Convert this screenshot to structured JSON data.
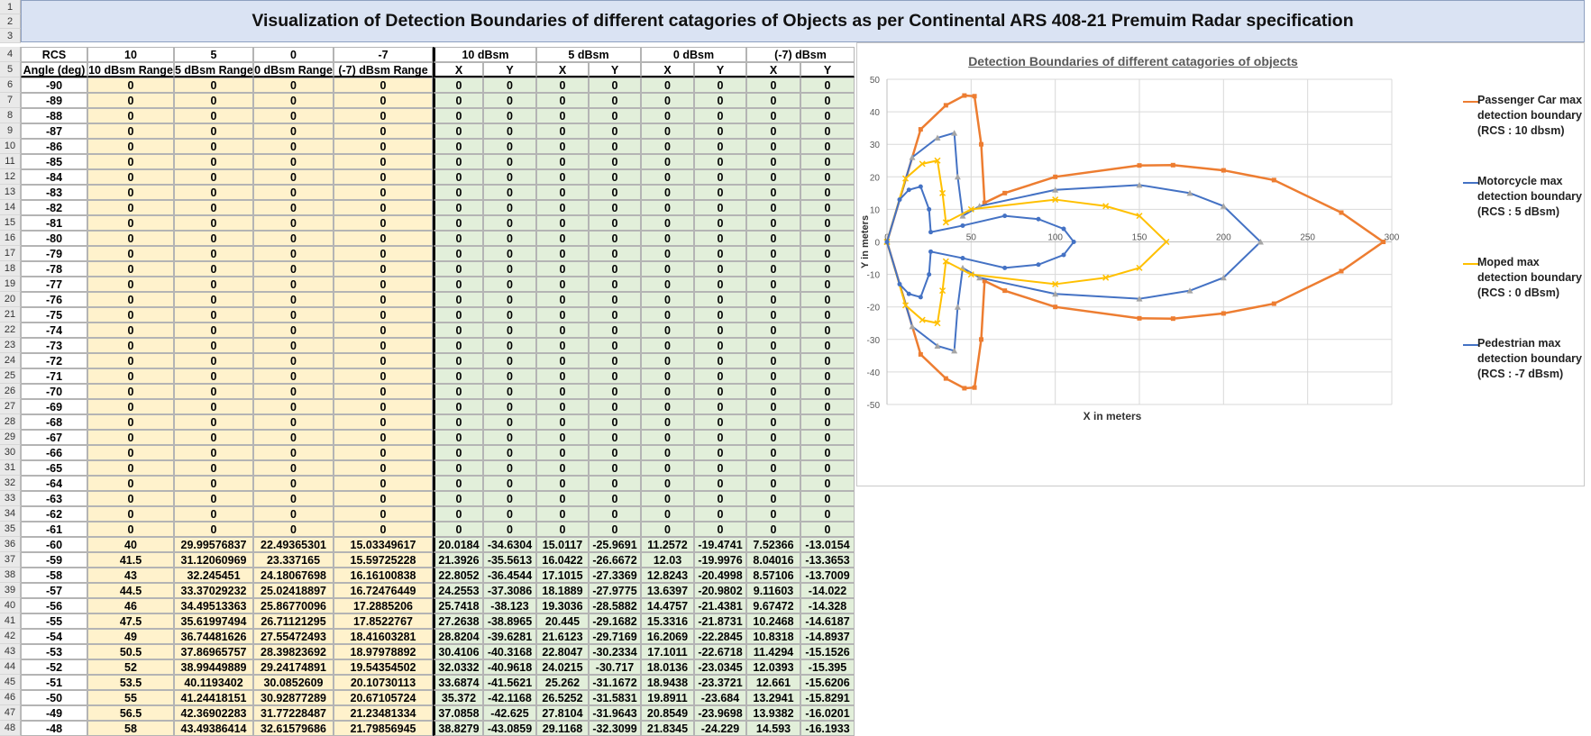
{
  "sheet": {
    "title": "Visualization of Detection Boundaries of different catagories of Objects as per Continental ARS 408-21 Premuim Radar specification",
    "row_numbers": [
      "1",
      "2",
      "3",
      "4",
      "5",
      "6",
      "7",
      "8",
      "9",
      "10",
      "11",
      "12",
      "13",
      "14",
      "15",
      "16",
      "17",
      "18",
      "19",
      "20",
      "21",
      "22",
      "23",
      "24",
      "25",
      "26",
      "27",
      "28",
      "29",
      "30",
      "31",
      "32",
      "33",
      "34",
      "35",
      "36",
      "37",
      "38",
      "39",
      "40",
      "41",
      "42",
      "43",
      "44",
      "45",
      "46",
      "47",
      "48"
    ],
    "header_row4": [
      "RCS",
      "10",
      "5",
      "0",
      "-7",
      "10 dBsm",
      "5 dBsm",
      "0 dBsm",
      "(-7) dBsm"
    ],
    "header_row5": [
      "Angle (deg)",
      "10 dBsm Range",
      "5 dBsm Range",
      "0 dBsm Range",
      "(-7) dBsm Range",
      "X",
      "Y",
      "X",
      "Y",
      "X",
      "Y",
      "X",
      "Y"
    ],
    "zero_rows": {
      "angles": [
        "-90",
        "-89",
        "-88",
        "-87",
        "-86",
        "-85",
        "-84",
        "-83",
        "-82",
        "-81",
        "-80",
        "-79",
        "-78",
        "-77",
        "-76",
        "-75",
        "-74",
        "-73",
        "-72",
        "-71",
        "-70",
        "-69",
        "-68",
        "-67",
        "-66",
        "-65",
        "-64",
        "-63",
        "-62",
        "-61"
      ],
      "value": "0"
    },
    "data_rows": [
      [
        "-60",
        "40",
        "29.99576837",
        "22.49365301",
        "15.03349617",
        "20.0184",
        "-34.6304",
        "15.0117",
        "-25.9691",
        "11.2572",
        "-19.4741",
        "7.52366",
        "-13.0154"
      ],
      [
        "-59",
        "41.5",
        "31.12060969",
        "23.337165",
        "15.59725228",
        "21.3926",
        "-35.5613",
        "16.0422",
        "-26.6672",
        "12.03",
        "-19.9976",
        "8.04016",
        "-13.3653"
      ],
      [
        "-58",
        "43",
        "32.245451",
        "24.18067698",
        "16.16100838",
        "22.8052",
        "-36.4544",
        "17.1015",
        "-27.3369",
        "12.8243",
        "-20.4998",
        "8.57106",
        "-13.7009"
      ],
      [
        "-57",
        "44.5",
        "33.37029232",
        "25.02418897",
        "16.72476449",
        "24.2553",
        "-37.3086",
        "18.1889",
        "-27.9775",
        "13.6397",
        "-20.9802",
        "9.11603",
        "-14.022"
      ],
      [
        "-56",
        "46",
        "34.49513363",
        "25.86770096",
        "17.2885206",
        "25.7418",
        "-38.123",
        "19.3036",
        "-28.5882",
        "14.4757",
        "-21.4381",
        "9.67472",
        "-14.328"
      ],
      [
        "-55",
        "47.5",
        "35.61997494",
        "26.71121295",
        "17.8522767",
        "27.2638",
        "-38.8965",
        "20.445",
        "-29.1682",
        "15.3316",
        "-21.8731",
        "10.2468",
        "-14.6187"
      ],
      [
        "-54",
        "49",
        "36.74481626",
        "27.55472493",
        "18.41603281",
        "28.8204",
        "-39.6281",
        "21.6123",
        "-29.7169",
        "16.2069",
        "-22.2845",
        "10.8318",
        "-14.8937"
      ],
      [
        "-53",
        "50.5",
        "37.86965757",
        "28.39823692",
        "18.97978892",
        "30.4106",
        "-40.3168",
        "22.8047",
        "-30.2334",
        "17.1011",
        "-22.6718",
        "11.4294",
        "-15.1526"
      ],
      [
        "-52",
        "52",
        "38.99449889",
        "29.24174891",
        "19.54354502",
        "32.0332",
        "-40.9618",
        "24.0215",
        "-30.717",
        "18.0136",
        "-23.0345",
        "12.0393",
        "-15.395"
      ],
      [
        "-51",
        "53.5",
        "40.1193402",
        "30.0852609",
        "20.10730113",
        "33.6874",
        "-41.5621",
        "25.262",
        "-31.1672",
        "18.9438",
        "-23.3721",
        "12.661",
        "-15.6206"
      ],
      [
        "-50",
        "55",
        "41.24418151",
        "30.92877289",
        "20.67105724",
        "35.372",
        "-42.1168",
        "26.5252",
        "-31.5831",
        "19.8911",
        "-23.684",
        "13.2941",
        "-15.8291"
      ],
      [
        "-49",
        "56.5",
        "42.36902283",
        "31.77228487",
        "21.23481334",
        "37.0858",
        "-42.625",
        "27.8104",
        "-31.9643",
        "20.8549",
        "-23.9698",
        "13.9382",
        "-16.0201"
      ],
      [
        "-48",
        "58",
        "43.49386414",
        "32.61579686",
        "21.79856945",
        "38.8279",
        "-43.0859",
        "29.1168",
        "-32.3099",
        "21.8345",
        "-24.229",
        "14.593",
        "-16.1933"
      ]
    ]
  },
  "chart": {
    "title": "Detection Boundaries of different catagories of objects",
    "xlabel": "X in meters",
    "ylabel": "Y in meters",
    "x_ticks": [
      "0",
      "50",
      "100",
      "150",
      "200",
      "250",
      "300"
    ],
    "y_ticks": [
      "50",
      "40",
      "30",
      "20",
      "10",
      "0",
      "-10",
      "-20",
      "-30",
      "-40",
      "-50"
    ],
    "legend": [
      "Passenger Car max detection boundary (RCS : 10 dbsm)",
      "Motorcycle max detection boundary (RCS : 5 dBsm)",
      "Moped max detection boundary (RCS : 0 dBsm)",
      "Pedestrian max detection boundary (RCS : -7 dBsm)"
    ],
    "colors": {
      "passenger_car": "#ed7d31",
      "motorcycle": "#4472c4",
      "moped": "#ffc000",
      "pedestrian": "#4472c4",
      "inner_gray": "#a5a5a5",
      "header_fill": "#dae3f3",
      "range_fill": "#fff2cc",
      "xy_fill": "#e2efda"
    }
  },
  "chart_data": {
    "type": "scatter",
    "title": "Detection Boundaries of different catagories of objects",
    "xlabel": "X in meters",
    "ylabel": "Y in meters",
    "xlim": [
      0,
      300
    ],
    "ylim": [
      -50,
      50
    ],
    "grid": true,
    "legend_position": "right",
    "series": [
      {
        "name": "Passenger Car max detection boundary (RCS : 10 dbsm)",
        "color": "#ed7d31",
        "x": [
          0,
          20,
          35,
          46,
          52,
          56,
          58,
          70,
          100,
          150,
          170,
          200,
          230,
          270,
          295,
          270,
          230,
          200,
          170,
          150,
          100,
          70,
          58,
          56,
          52,
          46,
          35,
          20,
          0
        ],
        "y": [
          0,
          34.6,
          42,
          45,
          44.8,
          30,
          12,
          15,
          20,
          23.5,
          23.6,
          22,
          19,
          9,
          0,
          -9,
          -19,
          -22,
          -23.6,
          -23.5,
          -20,
          -15,
          -12,
          -30,
          -44.8,
          -45,
          -42,
          -34.6,
          0
        ]
      },
      {
        "name": "Motorcycle max detection boundary (RCS : 5 dBsm)",
        "color": "#4472c4",
        "x": [
          0,
          15,
          30,
          40,
          42,
          45,
          55,
          100,
          150,
          180,
          200,
          222,
          200,
          180,
          150,
          100,
          55,
          45,
          42,
          40,
          30,
          15,
          0
        ],
        "y": [
          0,
          26,
          32,
          33.5,
          20,
          8,
          11,
          16,
          17.5,
          15,
          11,
          0,
          -11,
          -15,
          -17.5,
          -16,
          -11,
          -8,
          -20,
          -33.5,
          -32,
          -26,
          0
        ]
      },
      {
        "name": "Moped max detection boundary (RCS : 0 dBsm)",
        "color": "#ffc000",
        "x": [
          0,
          11,
          21,
          30,
          33,
          35,
          50,
          100,
          130,
          150,
          166,
          150,
          130,
          100,
          50,
          35,
          33,
          30,
          21,
          11,
          0
        ],
        "y": [
          0,
          19.5,
          24,
          25,
          15,
          6,
          10,
          13,
          11,
          8,
          0,
          -8,
          -11,
          -13,
          -10,
          -6,
          -15,
          -25,
          -24,
          -19.5,
          0
        ]
      },
      {
        "name": "Pedestrian max detection boundary (RCS : -7 dBsm)",
        "color": "#4472c4",
        "x": [
          0,
          7.5,
          13,
          20,
          25,
          26,
          45,
          70,
          90,
          105,
          111,
          105,
          90,
          70,
          45,
          26,
          25,
          20,
          13,
          7.5,
          0
        ],
        "y": [
          0,
          13,
          16,
          17,
          10,
          3,
          5,
          8,
          7,
          4,
          0,
          -4,
          -7,
          -8,
          -5,
          -3,
          -10,
          -17,
          -16,
          -13,
          0
        ]
      }
    ]
  }
}
